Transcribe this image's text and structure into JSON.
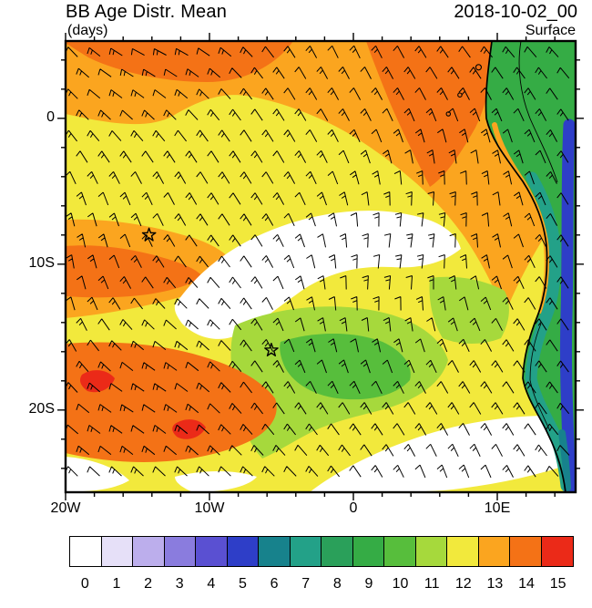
{
  "header": {
    "title": "BB Age Distr. Mean",
    "units_label": "(days)",
    "datetime": "2018-10-02_00",
    "level_label": "Surface"
  },
  "chart_data": {
    "type": "heatmap",
    "title": "BB Age Distr. Mean",
    "units": "days",
    "datetime": "2018-10-02_00",
    "level": "Surface",
    "description": "Filled-contour map of biomass-burning age distribution mean (days) over the South Atlantic and western Africa, with wind barbs, coastline and two star markers",
    "x_axis": {
      "ticks": [
        {
          "label": "20W",
          "lon": -20
        },
        {
          "label": "10W",
          "lon": -10
        },
        {
          "label": "0",
          "lon": 0
        },
        {
          "label": "10E",
          "lon": 10
        }
      ],
      "range_lon": [
        -20,
        15.4
      ],
      "minor_tick_deg": 2
    },
    "y_axis": {
      "ticks": [
        {
          "label": "0",
          "lat": 0
        },
        {
          "label": "10S",
          "lat": -10
        },
        {
          "label": "20S",
          "lat": -20
        }
      ],
      "range_lat": [
        5.3,
        -25.6
      ],
      "minor_tick_deg": 2
    },
    "colorbar": {
      "labels": [
        "0",
        "1",
        "2",
        "3",
        "4",
        "5",
        "6",
        "7",
        "8",
        "9",
        "10",
        "11",
        "12",
        "13",
        "14",
        "15"
      ],
      "colors": [
        "#FFFFFF",
        "#E6E0F8",
        "#BCAEEC",
        "#8A7CDE",
        "#5A50D2",
        "#2E3EC8",
        "#17828C",
        "#23A188",
        "#2AA05A",
        "#35AC45",
        "#57BE3C",
        "#A6D93C",
        "#F2E93C",
        "#FBA51F",
        "#F47216",
        "#EB2A18"
      ]
    },
    "overlays": [
      "wind-barbs",
      "coastline",
      "star-markers"
    ],
    "markers": [
      {
        "symbol": "star",
        "lon": -14.2,
        "lat": -8.0
      },
      {
        "symbol": "star",
        "lon": -5.7,
        "lat": -15.9
      }
    ],
    "islands": [
      {
        "lon": 8.7,
        "lat": 3.5
      },
      {
        "lon": 7.4,
        "lat": 1.6
      },
      {
        "lon": 6.6,
        "lat": 0.3
      }
    ],
    "map_regions": [
      {
        "name": "ocean-base",
        "level": 12
      },
      {
        "name": "top-orange-band",
        "level": 13
      },
      {
        "name": "top-orange-dark-west",
        "level": 14
      },
      {
        "name": "top-orange-dark-east",
        "level": 14
      },
      {
        "name": "midleft-orange-band",
        "level": 13
      },
      {
        "name": "midleft-orange-core",
        "level": 14
      },
      {
        "name": "white-crescent",
        "level": 0
      },
      {
        "name": "east-green-tint",
        "level": 11
      },
      {
        "name": "green-patch",
        "level": 11
      },
      {
        "name": "green-patch-core",
        "level": 10
      },
      {
        "name": "southwest-orange",
        "level": 14
      },
      {
        "name": "southwest-red-spot-a",
        "level": 15
      },
      {
        "name": "southwest-red-spot-b",
        "level": 15
      },
      {
        "name": "white-bottom-left",
        "level": 0
      },
      {
        "name": "white-bottom-mid",
        "level": 0
      },
      {
        "name": "white-bottom-right",
        "level": 0
      },
      {
        "name": "land-base",
        "level": 9
      },
      {
        "name": "land-coast-orange-sliver",
        "level": 13
      },
      {
        "name": "land-teal-band",
        "level": 7
      },
      {
        "name": "land-blue-band",
        "level": 5
      },
      {
        "name": "land-darkteal-patch",
        "level": 6
      }
    ]
  }
}
